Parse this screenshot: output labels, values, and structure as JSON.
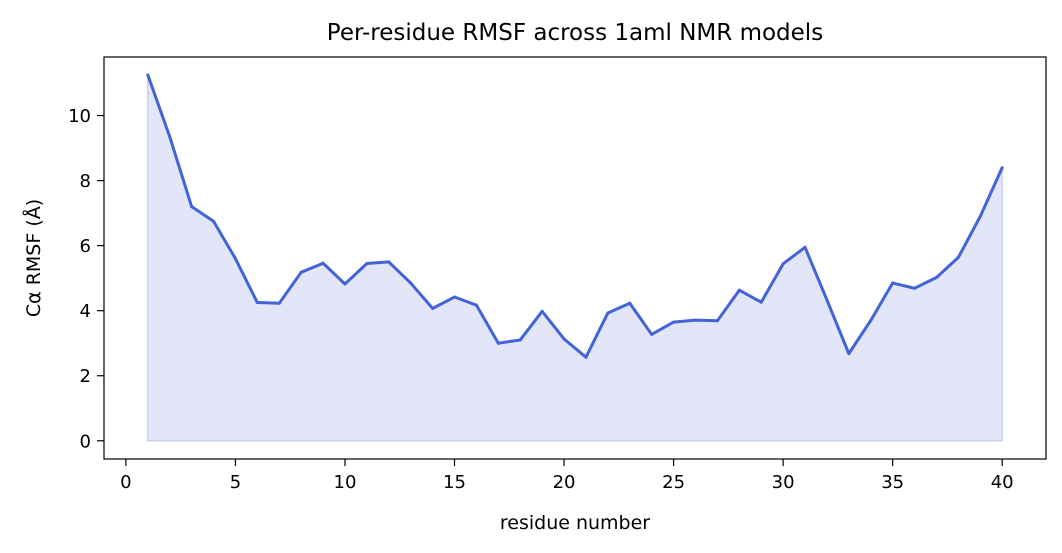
{
  "chart_data": {
    "type": "area",
    "title": "Per-residue RMSF across 1aml NMR models",
    "xlabel": "residue number",
    "ylabel": "Cα RMSF (Å)",
    "xlim": [
      -1,
      42
    ],
    "ylim": [
      -0.56,
      11.8
    ],
    "xticks": [
      0,
      5,
      10,
      15,
      20,
      25,
      30,
      35,
      40
    ],
    "yticks": [
      0,
      2,
      4,
      6,
      8,
      10
    ],
    "grid": false,
    "legend": "none",
    "line_color": "#4363d8",
    "fill_color": "#e3e6f9",
    "series": [
      {
        "x": [
          1,
          2,
          3,
          4,
          5,
          6,
          7,
          8,
          9,
          10,
          11,
          12,
          13,
          14,
          15,
          16,
          17,
          18,
          19,
          20,
          21,
          22,
          23,
          24,
          25,
          26,
          27,
          28,
          29,
          30,
          31,
          32,
          33,
          34,
          35,
          36,
          37,
          38,
          39,
          40
        ],
        "values": [
          11.25,
          9.35,
          7.2,
          6.75,
          5.6,
          4.25,
          4.23,
          5.18,
          5.46,
          4.82,
          5.45,
          5.5,
          4.85,
          4.07,
          4.42,
          4.17,
          3.0,
          3.1,
          3.98,
          3.13,
          2.57,
          3.93,
          4.23,
          3.27,
          3.65,
          3.71,
          3.69,
          4.63,
          4.26,
          5.44,
          5.95,
          4.33,
          2.68,
          3.7,
          4.85,
          4.69,
          5.02,
          5.64,
          6.9,
          8.4
        ]
      }
    ]
  }
}
